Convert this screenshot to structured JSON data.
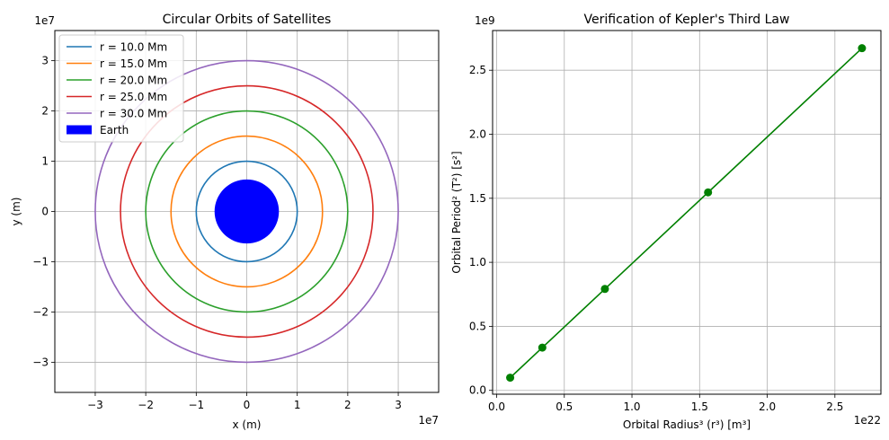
{
  "chart_data": [
    {
      "type": "line",
      "title": "Circular Orbits of Satellites",
      "xlabel": "x (m)",
      "ylabel": "y (m)",
      "x_offset_text": "1e7",
      "y_offset_text": "1e7",
      "xlim": [
        -3.8,
        3.8
      ],
      "ylim": [
        -3.6,
        3.6
      ],
      "xticks": [
        -3,
        -2,
        -1,
        0,
        1,
        2,
        3
      ],
      "xtick_labels": [
        "−3",
        "−2",
        "−1",
        "0",
        "1",
        "2",
        "3"
      ],
      "yticks": [
        -3,
        -2,
        -1,
        0,
        1,
        2,
        3
      ],
      "ytick_labels": [
        "−3",
        "−2",
        "−1",
        "0",
        "1",
        "2",
        "3"
      ],
      "grid": true,
      "legend_position": "top-left",
      "series": [
        {
          "name": "r = 10.0 Mm",
          "radius": 1.0,
          "color": "#1f77b4"
        },
        {
          "name": "r = 15.0 Mm",
          "radius": 1.5,
          "color": "#ff7f0e"
        },
        {
          "name": "r = 20.0 Mm",
          "radius": 2.0,
          "color": "#2ca02c"
        },
        {
          "name": "r = 25.0 Mm",
          "radius": 2.5,
          "color": "#d62728"
        },
        {
          "name": "r = 30.0 Mm",
          "radius": 3.0,
          "color": "#9467bd"
        }
      ],
      "earth": {
        "name": "Earth",
        "radius": 0.6371,
        "color": "#0000ff"
      }
    },
    {
      "type": "line",
      "title": "Verification of Kepler's Third Law",
      "xlabel": "Orbital Radius³ (r³) [m³]",
      "ylabel": "Orbital Period² (T²) [s²]",
      "x_offset_text": "1e22",
      "y_offset_text": "1e9",
      "xlim": [
        -0.03,
        2.84
      ],
      "ylim": [
        -0.03,
        2.81
      ],
      "xticks": [
        0.0,
        0.5,
        1.0,
        1.5,
        2.0,
        2.5
      ],
      "xtick_labels": [
        "0.0",
        "0.5",
        "1.0",
        "1.5",
        "2.0",
        "2.5"
      ],
      "yticks": [
        0.0,
        0.5,
        1.0,
        1.5,
        2.0,
        2.5
      ],
      "ytick_labels": [
        "0.0",
        "0.5",
        "1.0",
        "1.5",
        "2.0",
        "2.5"
      ],
      "grid": true,
      "series": [
        {
          "color": "#008000",
          "x": [
            0.1,
            0.3375,
            0.8,
            1.5625,
            2.7
          ],
          "y": [
            0.099,
            0.334,
            0.792,
            1.546,
            2.672
          ]
        }
      ]
    }
  ]
}
